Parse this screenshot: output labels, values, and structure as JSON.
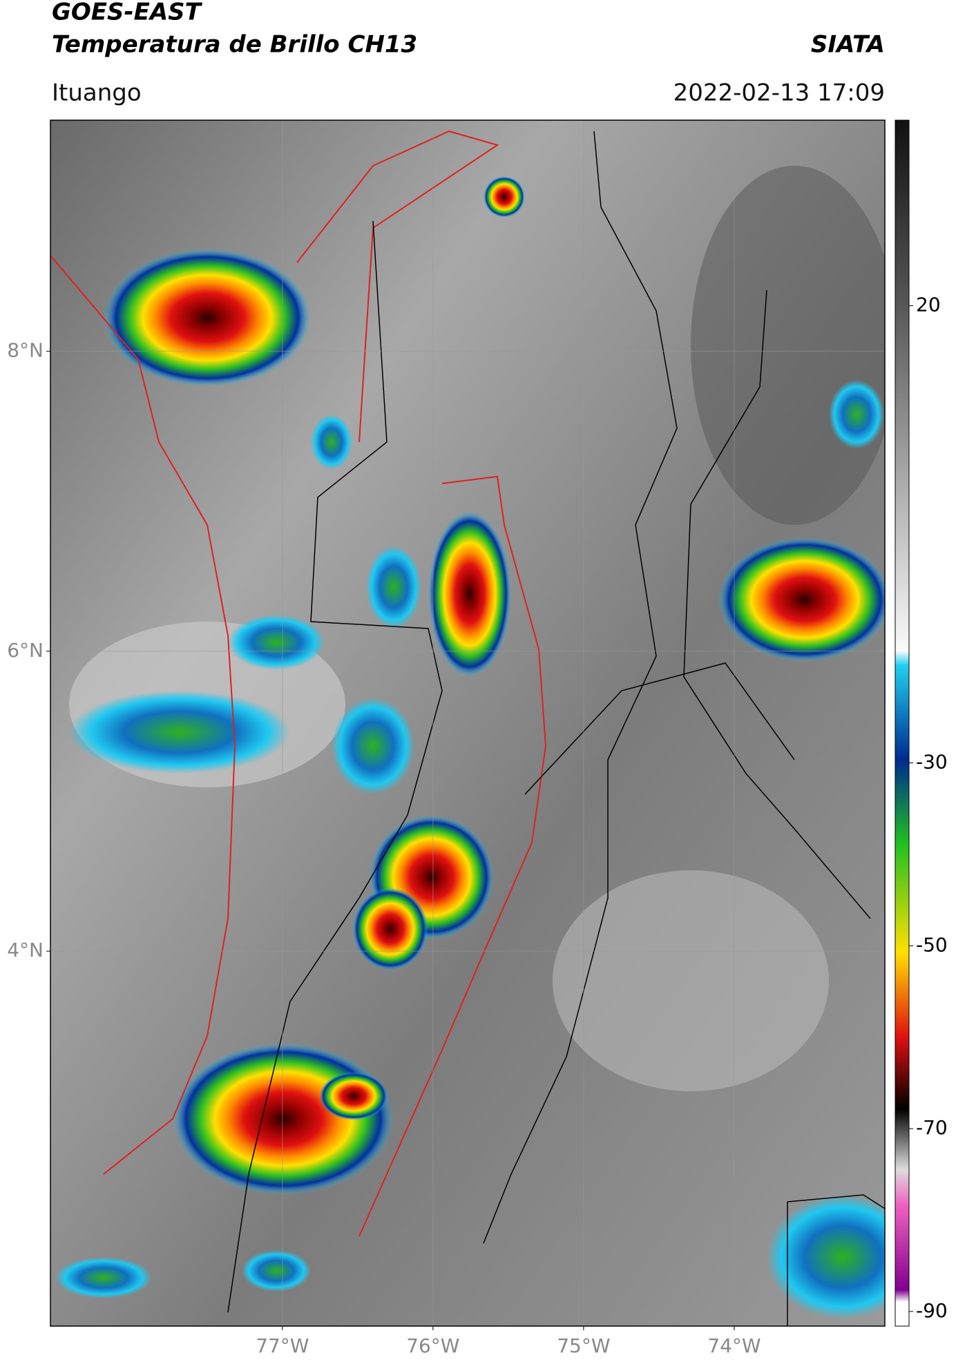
{
  "map": {
    "title": "GOES-EAST",
    "subtitle": "Temperatura de Brillo CH13",
    "source": "SIATA",
    "region": "Ituango",
    "datetime": "2022-02-13 17:09",
    "ylim": [
      1.5,
      9.54
    ],
    "yticks": [
      {
        "value": 8,
        "label": "8°N"
      },
      {
        "value": 6,
        "label": "6°N"
      },
      {
        "value": 4,
        "label": "4°N"
      }
    ],
    "xlim": [
      -78.54,
      -73.0
    ],
    "xticks": [
      {
        "value": -77,
        "label": "77°W"
      },
      {
        "value": -76,
        "label": "76°W"
      },
      {
        "value": -75,
        "label": "75°W"
      },
      {
        "value": -74,
        "label": "74°W"
      }
    ],
    "grid": true,
    "colorbar": {
      "lim": [
        -91.6,
        40.3
      ],
      "ticks": [
        20,
        -30,
        -50,
        -70,
        -90
      ]
    }
  }
}
